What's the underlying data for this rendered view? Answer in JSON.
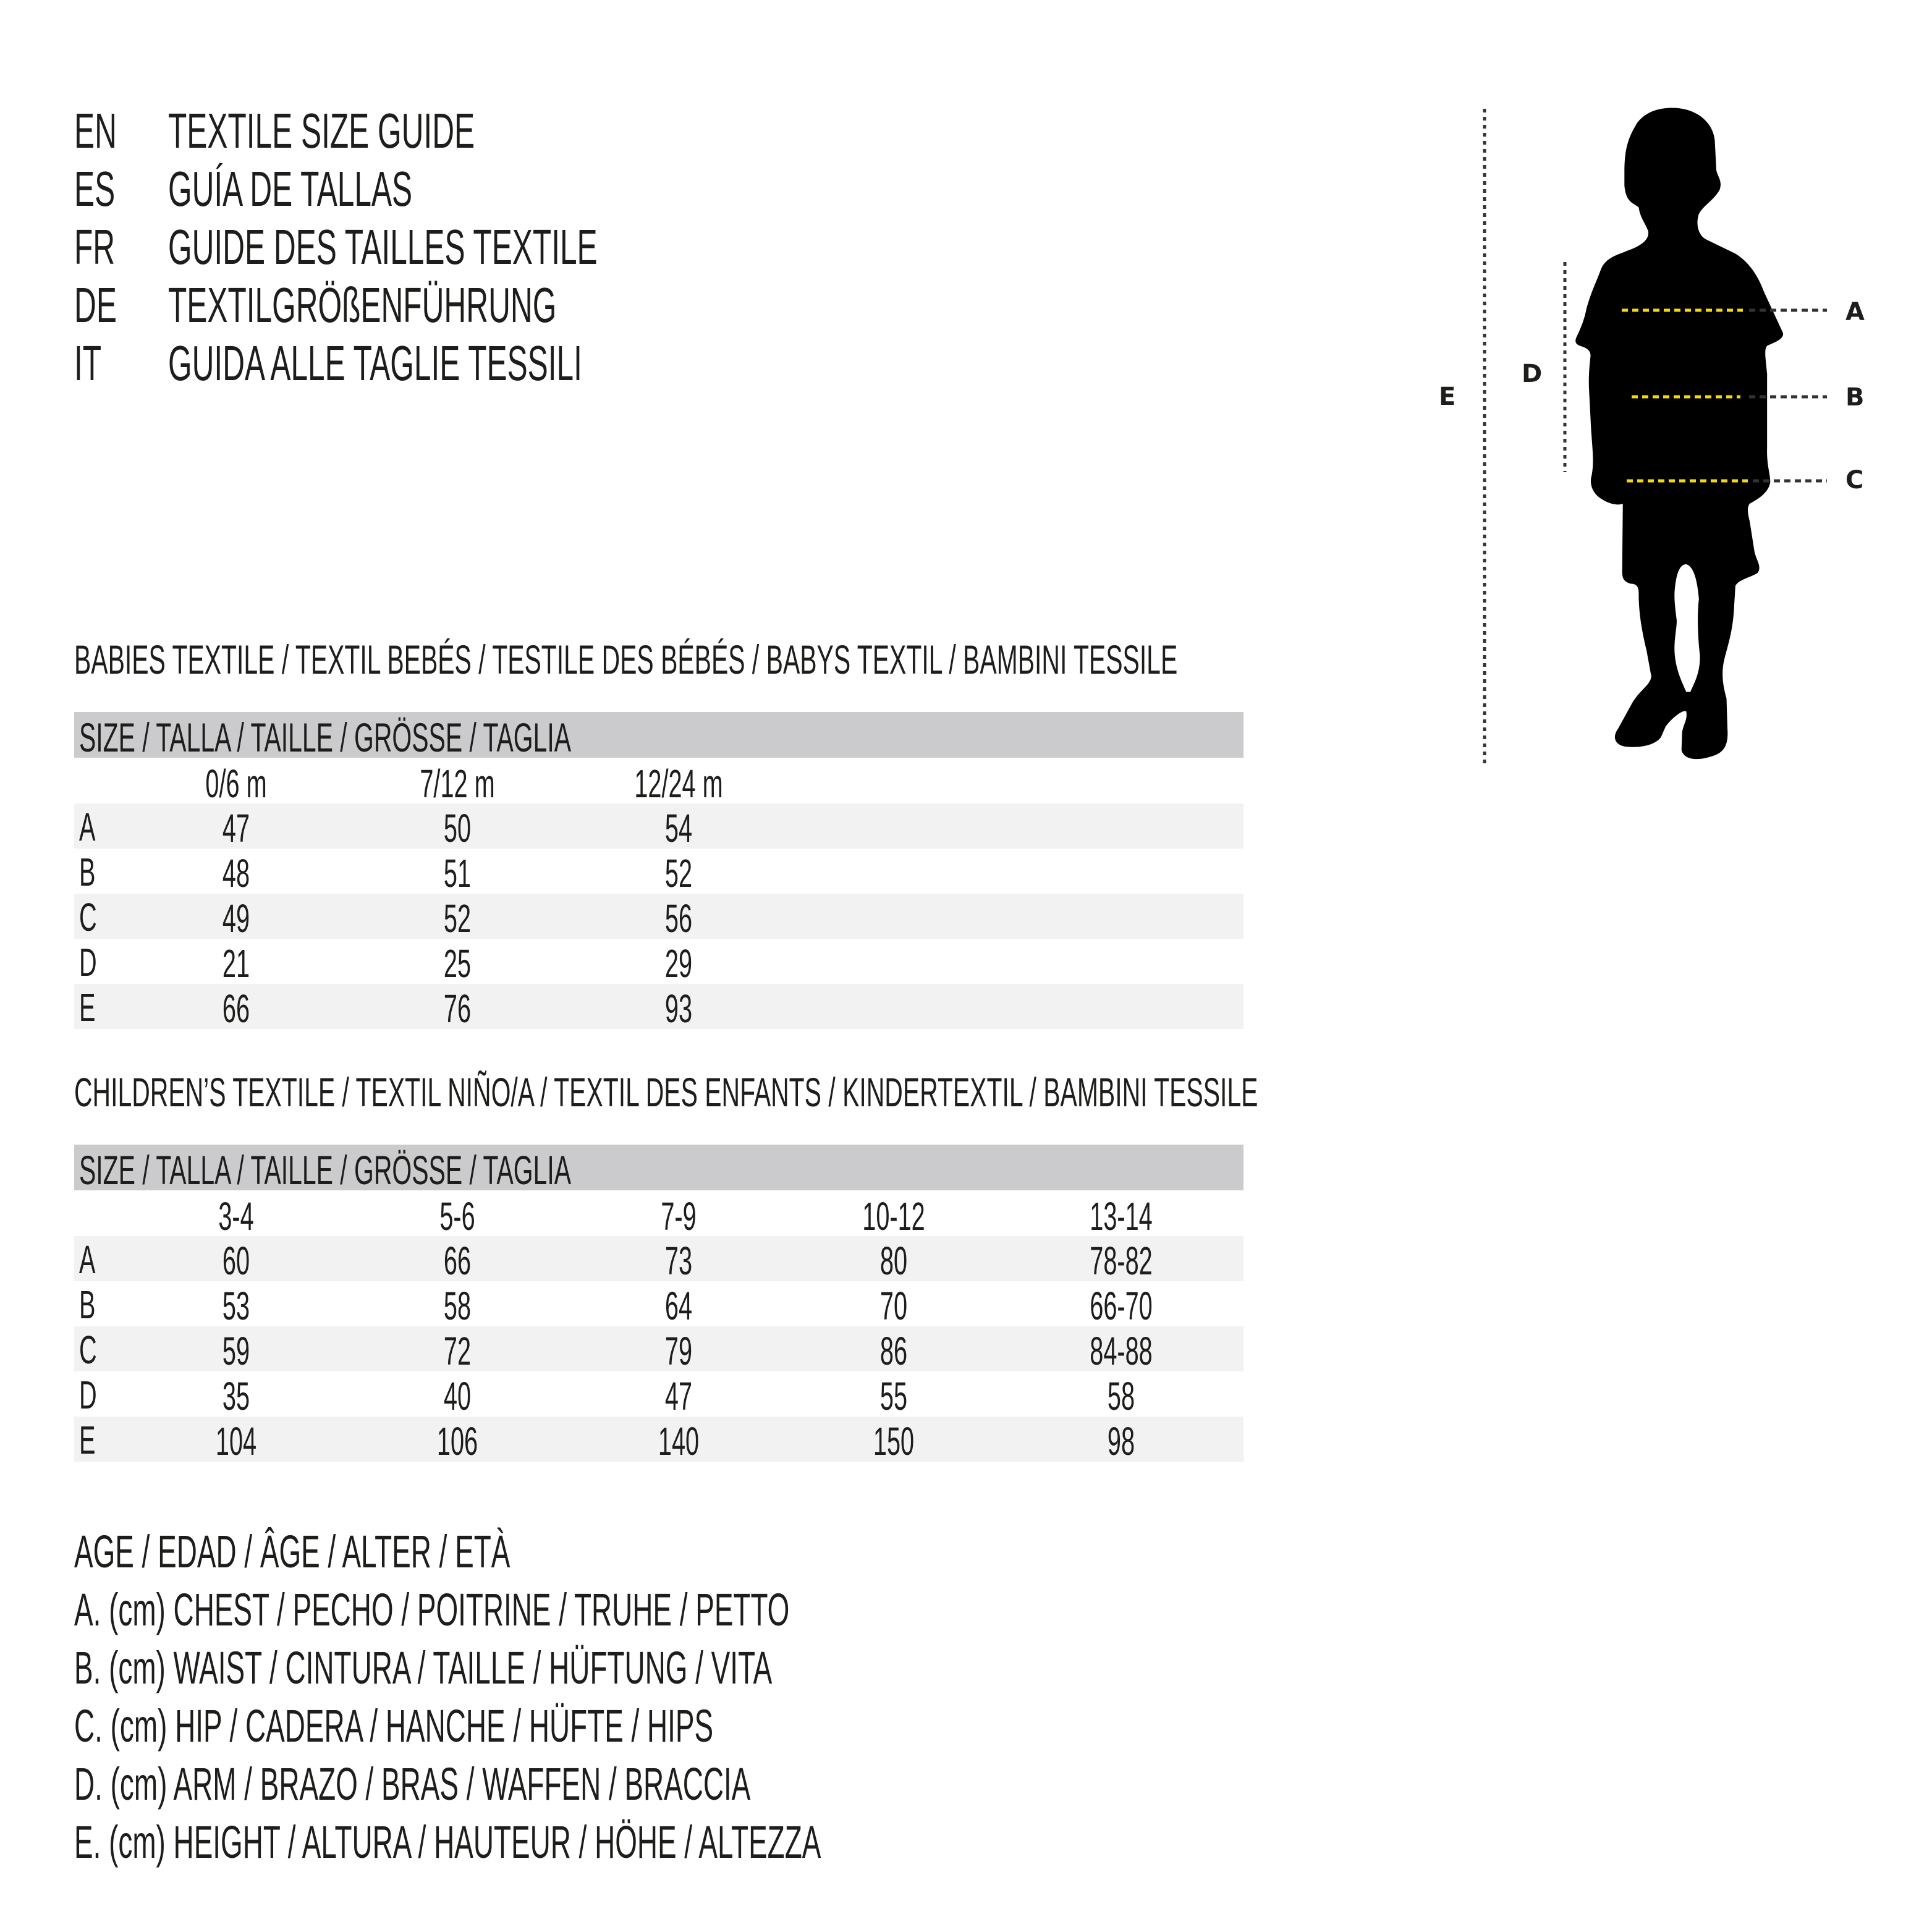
{
  "titles": [
    {
      "code": "EN",
      "text": "TEXTILE SIZE GUIDE"
    },
    {
      "code": "ES",
      "text": "GUÍA DE TALLAS"
    },
    {
      "code": "FR",
      "text": "GUIDE DES TAILLES TEXTILE"
    },
    {
      "code": "DE",
      "text": "TEXTILGRÖßENFÜHRUNG"
    },
    {
      "code": "IT",
      "text": "GUIDA ALLE TAGLIE TESSILI"
    }
  ],
  "babies": {
    "heading": "BABIES TEXTILE / TEXTIL BEBÉS / TESTILE DES BÉBÉS / BABYS TEXTIL / BAMBINI TESSILE",
    "size_header": "SIZE / TALLA / TAILLE / GRÖSSE / TAGLIA",
    "columns": [
      "0/6 m",
      "7/12 m",
      "12/24 m"
    ],
    "rows": [
      {
        "label": "A",
        "values": [
          "47",
          "50",
          "54"
        ]
      },
      {
        "label": "B",
        "values": [
          "48",
          "51",
          "52"
        ]
      },
      {
        "label": "C",
        "values": [
          "49",
          "52",
          "56"
        ]
      },
      {
        "label": "D",
        "values": [
          "21",
          "25",
          "29"
        ]
      },
      {
        "label": "E",
        "values": [
          "66",
          "76",
          "93"
        ]
      }
    ]
  },
  "children": {
    "heading": "CHILDREN’S TEXTILE / TEXTIL NIÑO/A / TEXTIL DES ENFANTS / KINDERTEXTIL / BAMBINI TESSILE",
    "size_header": "SIZE / TALLA / TAILLE / GRÖSSE / TAGLIA",
    "columns": [
      "3-4",
      "5-6",
      "7-9",
      "10-12",
      "13-14"
    ],
    "rows": [
      {
        "label": "A",
        "values": [
          "60",
          "66",
          "73",
          "80",
          "78-82"
        ]
      },
      {
        "label": "B",
        "values": [
          "53",
          "58",
          "64",
          "70",
          "66-70"
        ]
      },
      {
        "label": "C",
        "values": [
          "59",
          "72",
          "79",
          "86",
          "84-88"
        ]
      },
      {
        "label": "D",
        "values": [
          "35",
          "40",
          "47",
          "55",
          "58"
        ]
      },
      {
        "label": "E",
        "values": [
          "104",
          "106",
          "140",
          "150",
          "98"
        ]
      }
    ]
  },
  "legend": [
    "AGE / EDAD / ÂGE / ALTER / ETÀ",
    "A. (cm) CHEST / PECHO / POITRINE / TRUHE / PETTO",
    "B. (cm) WAIST / CINTURA / TAILLE / HÜFTUNG / VITA",
    "C. (cm) HIP / CADERA / HANCHE / HÜFTE / HIPS",
    "D. (cm) ARM / BRAZO / BRAS / WAFFEN / BRACCIA",
    "E. (cm) HEIGHT / ALTURA / HAUTEUR / HÖHE / ALTEZZA"
  ],
  "figure": {
    "labels": {
      "A": "A",
      "B": "B",
      "C": "C",
      "D": "D",
      "E": "E"
    },
    "icon": "child-silhouette-icon"
  },
  "colors": {
    "text": "#1d1d1b",
    "header_bar": "#cbcbcd",
    "row_shade": "#f2f2f2",
    "measure_line": "#f5d90a"
  }
}
